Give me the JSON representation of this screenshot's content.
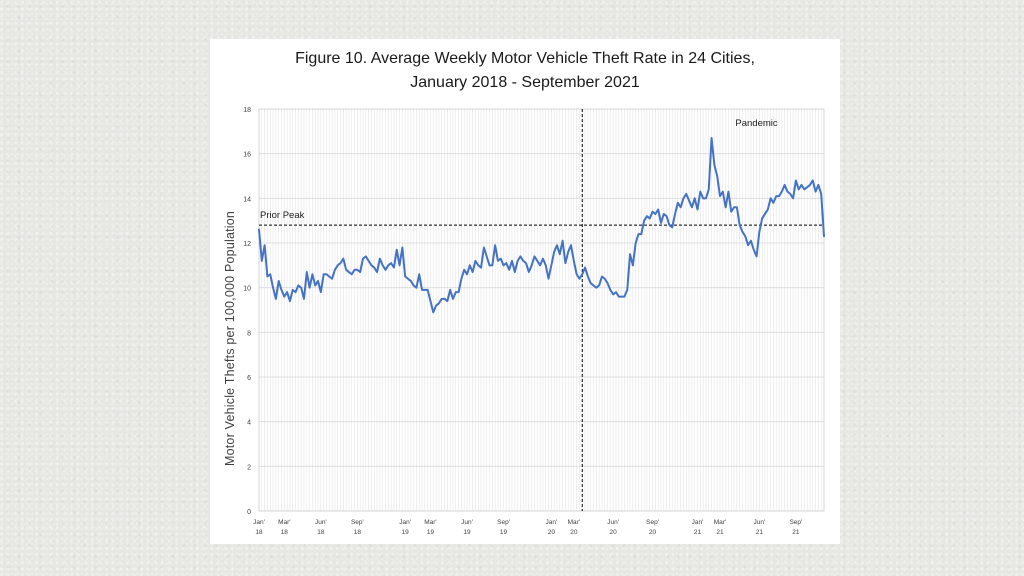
{
  "chart_data": {
    "type": "line",
    "title_line1": "Figure 10. Average Weekly Motor Vehicle Theft Rate in 24 Cities,",
    "title_line2": "January 2018 - September 2021",
    "ylabel": "Motor Vehicle Thefts per 100,000 Population",
    "xlabel": "",
    "ylim": [
      0,
      18
    ],
    "yticks": [
      0,
      2,
      4,
      6,
      8,
      10,
      12,
      14,
      16,
      18
    ],
    "grid": true,
    "x_tick_labels": [
      {
        "top": "Jan'",
        "bottom": "18"
      },
      {
        "top": "Mar'",
        "bottom": "18"
      },
      {
        "top": "Jun'",
        "bottom": "18"
      },
      {
        "top": "Sep'",
        "bottom": "18"
      },
      {
        "top": "Jan'",
        "bottom": "19"
      },
      {
        "top": "Mar'",
        "bottom": "19"
      },
      {
        "top": "Jun'",
        "bottom": "19"
      },
      {
        "top": "Sep'",
        "bottom": "19"
      },
      {
        "top": "Jan'",
        "bottom": "20"
      },
      {
        "top": "Mar'",
        "bottom": "20"
      },
      {
        "top": "Jun'",
        "bottom": "20"
      },
      {
        "top": "Sep'",
        "bottom": "20"
      },
      {
        "top": "Jan'",
        "bottom": "21"
      },
      {
        "top": "Mar'",
        "bottom": "21"
      },
      {
        "top": "Jun'",
        "bottom": "21"
      },
      {
        "top": "Sep'",
        "bottom": "21"
      }
    ],
    "x_tick_weeks": [
      0,
      9,
      22,
      35,
      52,
      61,
      74,
      87,
      104,
      112,
      126,
      140,
      156,
      164,
      178,
      191
    ],
    "series": [
      {
        "color": "#4472c4",
        "values": [
          12.6,
          11.2,
          11.9,
          10.5,
          10.6,
          10.0,
          9.5,
          10.3,
          9.9,
          9.6,
          9.8,
          9.4,
          9.9,
          9.8,
          10.1,
          10.0,
          9.5,
          10.7,
          10.0,
          10.6,
          10.1,
          10.3,
          9.8,
          10.6,
          10.6,
          10.5,
          10.4,
          10.8,
          11.0,
          11.1,
          11.3,
          10.8,
          10.7,
          10.6,
          10.8,
          10.8,
          10.7,
          11.3,
          11.4,
          11.2,
          11.0,
          10.9,
          10.7,
          11.3,
          11.0,
          10.8,
          11.0,
          11.1,
          10.9,
          11.7,
          11.0,
          11.8,
          10.5,
          10.4,
          10.3,
          10.1,
          10.0,
          10.6,
          9.9,
          9.9,
          9.9,
          9.4,
          8.9,
          9.2,
          9.3,
          9.5,
          9.5,
          9.4,
          9.9,
          9.5,
          9.8,
          9.8,
          10.4,
          10.8,
          10.6,
          11.0,
          10.7,
          11.2,
          11.0,
          10.9,
          11.8,
          11.4,
          11.0,
          11.0,
          11.9,
          11.2,
          11.3,
          11.0,
          11.1,
          10.8,
          11.2,
          10.7,
          11.2,
          11.4,
          11.2,
          11.1,
          10.7,
          11.0,
          11.4,
          11.2,
          11.0,
          11.3,
          11.0,
          10.4,
          11.0,
          11.6,
          11.9,
          11.5,
          12.1,
          11.1,
          11.6,
          11.9,
          11.2,
          10.6,
          10.4,
          10.6,
          10.9,
          10.5,
          10.2,
          10.1,
          10.0,
          10.1,
          10.5,
          10.4,
          10.2,
          9.9,
          9.7,
          9.8,
          9.6,
          9.6,
          9.6,
          9.9,
          11.5,
          11.0,
          12.0,
          12.4,
          12.4,
          13.0,
          13.2,
          13.1,
          13.4,
          13.3,
          13.5,
          12.9,
          13.3,
          13.2,
          12.8,
          12.7,
          13.3,
          13.8,
          13.6,
          14.0,
          14.2,
          13.9,
          13.6,
          14.0,
          13.5,
          14.3,
          14.0,
          14.0,
          14.4,
          16.7,
          15.5,
          15.0,
          14.1,
          14.3,
          13.6,
          14.3,
          13.4,
          13.6,
          13.6,
          12.8,
          12.5,
          12.3,
          11.9,
          12.1,
          11.7,
          11.4,
          12.5,
          13.1,
          13.3,
          13.5,
          14.0,
          13.8,
          14.1,
          14.1,
          14.3,
          14.6,
          14.3,
          14.2,
          14.0,
          14.8,
          14.4,
          14.6,
          14.4,
          14.5,
          14.6,
          14.8,
          14.3,
          14.6,
          14.2,
          12.3
        ]
      }
    ],
    "reference_lines": [
      {
        "type": "horizontal",
        "value": 12.8,
        "label": "Prior Peak"
      },
      {
        "type": "vertical",
        "week": 115
      }
    ],
    "annotations": [
      {
        "text": "Pandemic"
      }
    ]
  }
}
